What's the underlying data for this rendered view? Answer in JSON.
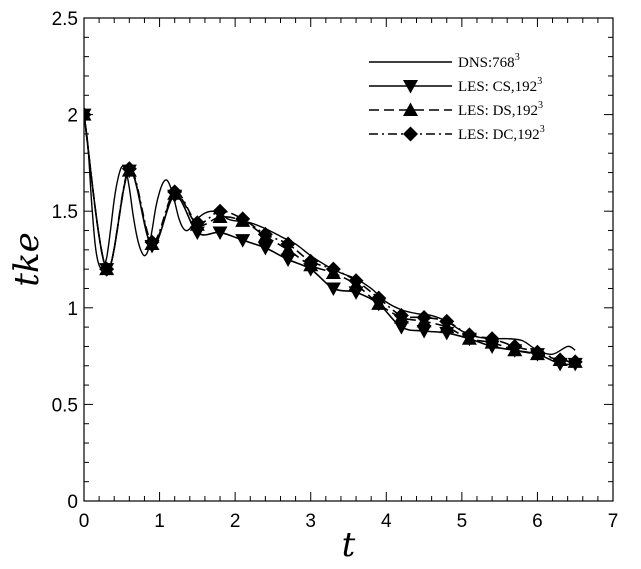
{
  "chart_data": {
    "type": "line",
    "title": "",
    "xlabel": "t",
    "ylabel": "tke",
    "xlim": [
      0,
      7
    ],
    "ylim": [
      0,
      2.5
    ],
    "xticks": [
      0,
      1,
      2,
      3,
      4,
      5,
      6,
      7
    ],
    "yticks": [
      0,
      0.5,
      1,
      1.5,
      2,
      2.5
    ],
    "xtick_labels": [
      "0",
      "1",
      "2",
      "3",
      "4",
      "5",
      "6",
      "7"
    ],
    "ytick_labels": [
      "0",
      "0.5",
      "1",
      "1.5",
      "2",
      "2.5"
    ],
    "grid": false,
    "legend": "top-right",
    "series": [
      {
        "name": "DNS:768",
        "name_sup": "3",
        "style": "solid",
        "marker": "none",
        "x": [
          0,
          0.05,
          0.1,
          0.15,
          0.2,
          0.25,
          0.3,
          0.35,
          0.4,
          0.45,
          0.5,
          0.55,
          0.6,
          0.65,
          0.7,
          0.75,
          0.8,
          0.85,
          0.9,
          0.95,
          1.0,
          1.05,
          1.1,
          1.15,
          1.2,
          1.25,
          1.3,
          1.35,
          1.4,
          1.5,
          1.6,
          1.7,
          1.8,
          1.9,
          2.0,
          2.2,
          2.4,
          2.6,
          2.8,
          3.0,
          3.2,
          3.4,
          3.6,
          3.8,
          4.0,
          4.2,
          4.4,
          4.6,
          4.8,
          5.0,
          5.2,
          5.4,
          5.6,
          5.8,
          6.0,
          6.2,
          6.4,
          6.5
        ],
        "y": [
          2.0,
          1.85,
          1.55,
          1.32,
          1.22,
          1.21,
          1.26,
          1.4,
          1.56,
          1.67,
          1.73,
          1.72,
          1.62,
          1.48,
          1.37,
          1.3,
          1.27,
          1.3,
          1.4,
          1.52,
          1.6,
          1.65,
          1.66,
          1.62,
          1.55,
          1.47,
          1.42,
          1.4,
          1.41,
          1.46,
          1.49,
          1.5,
          1.49,
          1.46,
          1.45,
          1.44,
          1.41,
          1.37,
          1.33,
          1.27,
          1.22,
          1.18,
          1.15,
          1.1,
          1.03,
          0.99,
          0.97,
          0.96,
          0.93,
          0.88,
          0.85,
          0.84,
          0.84,
          0.83,
          0.78,
          0.76,
          0.8,
          0.78
        ]
      },
      {
        "name": "LES: CS,192",
        "name_sup": "3",
        "style": "solid",
        "marker": "triangle-down",
        "x": [
          0,
          0.3,
          0.6,
          0.9,
          1.2,
          1.5,
          1.8,
          2.1,
          2.4,
          2.7,
          3.0,
          3.3,
          3.6,
          3.9,
          4.2,
          4.5,
          4.8,
          5.1,
          5.4,
          5.7,
          6.0,
          6.3,
          6.5
        ],
        "y": [
          2.0,
          1.2,
          1.71,
          1.32,
          1.58,
          1.39,
          1.39,
          1.35,
          1.31,
          1.25,
          1.2,
          1.1,
          1.08,
          1.02,
          0.9,
          0.88,
          0.87,
          0.84,
          0.8,
          0.78,
          0.76,
          0.71,
          0.71
        ]
      },
      {
        "name": "LES: DS,192",
        "name_sup": "3",
        "style": "dashed",
        "marker": "triangle-up",
        "x": [
          0,
          0.3,
          0.6,
          0.9,
          1.2,
          1.5,
          1.8,
          2.1,
          2.4,
          2.7,
          3.0,
          3.3,
          3.6,
          3.9,
          4.2,
          4.5,
          4.8,
          5.1,
          5.4,
          5.7,
          6.0,
          6.3,
          6.5
        ],
        "y": [
          2.0,
          1.2,
          1.71,
          1.33,
          1.59,
          1.43,
          1.47,
          1.45,
          1.37,
          1.3,
          1.22,
          1.18,
          1.12,
          1.02,
          0.95,
          0.93,
          0.9,
          0.84,
          0.82,
          0.78,
          0.76,
          0.73,
          0.72
        ]
      },
      {
        "name": "LES: DC,192",
        "name_sup": "3",
        "style": "dashdot",
        "marker": "diamond",
        "x": [
          0,
          0.3,
          0.6,
          0.9,
          1.2,
          1.5,
          1.8,
          2.1,
          2.4,
          2.7,
          3.0,
          3.3,
          3.6,
          3.9,
          4.2,
          4.5,
          4.8,
          5.1,
          5.4,
          5.7,
          6.0,
          6.3,
          6.5
        ],
        "y": [
          2.0,
          1.2,
          1.72,
          1.34,
          1.6,
          1.44,
          1.5,
          1.46,
          1.38,
          1.33,
          1.24,
          1.2,
          1.14,
          1.05,
          0.96,
          0.95,
          0.93,
          0.86,
          0.84,
          0.8,
          0.77,
          0.73,
          0.72
        ]
      }
    ]
  }
}
